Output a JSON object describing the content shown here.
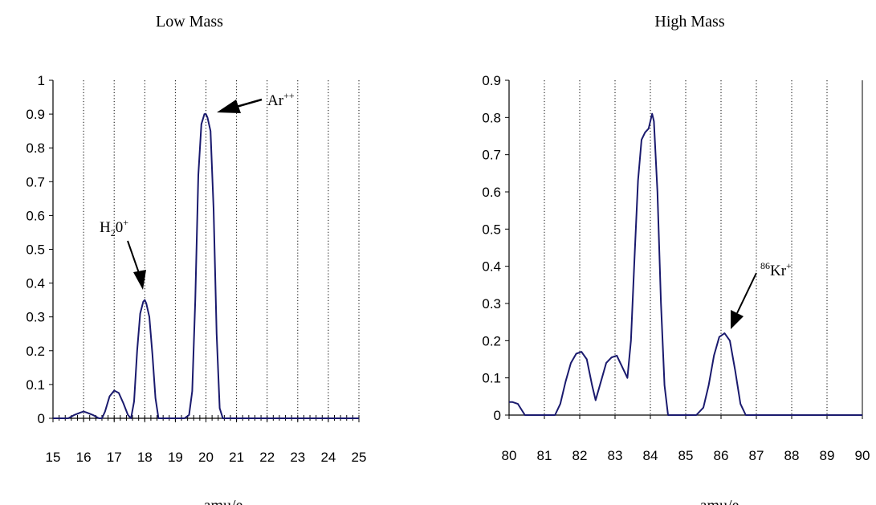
{
  "chart_data": [
    {
      "type": "line",
      "title": "Low Mass",
      "xlabel": "amu/e",
      "ylabel": "",
      "xlim": [
        15,
        25
      ],
      "ylim": [
        0,
        1
      ],
      "x_ticks": [
        "15",
        "16",
        "17",
        "18",
        "19",
        "20",
        "21",
        "22",
        "23",
        "24",
        "25"
      ],
      "y_ticks": [
        "0",
        "0.1",
        "0.2",
        "0.3",
        "0.4",
        "0.5",
        "0.6",
        "0.7",
        "0.8",
        "0.9",
        "1"
      ],
      "grid": "vertical-dotted",
      "line_color": "#1a1a6e",
      "series": [
        {
          "x": [
            15,
            15.5,
            15.7,
            15.9,
            16.0,
            16.1,
            16.3,
            16.5,
            16.6,
            16.7,
            16.85,
            17.0,
            17.15,
            17.3,
            17.45,
            17.55,
            17.65,
            17.75,
            17.85,
            17.95,
            18.0,
            18.05,
            18.15,
            18.25,
            18.35,
            18.45,
            18.6,
            19.0,
            19.3,
            19.45,
            19.55,
            19.65,
            19.75,
            19.85,
            19.95,
            20.0,
            20.05,
            20.15,
            20.25,
            20.35,
            20.45,
            20.55,
            21.0,
            25.0
          ],
          "y": [
            0,
            0,
            0.01,
            0.017,
            0.02,
            0.017,
            0.01,
            0,
            0,
            0.02,
            0.065,
            0.082,
            0.075,
            0.045,
            0.01,
            0,
            0.05,
            0.2,
            0.31,
            0.345,
            0.35,
            0.34,
            0.3,
            0.19,
            0.06,
            0,
            0,
            0,
            0,
            0.01,
            0.08,
            0.35,
            0.72,
            0.87,
            0.9,
            0.9,
            0.89,
            0.85,
            0.62,
            0.25,
            0.03,
            0,
            0,
            0
          ]
        }
      ],
      "annotations": [
        {
          "text": "Ar",
          "superscript": "++",
          "x": 20,
          "y": 0.9
        },
        {
          "text": "H",
          "subscript": "2",
          "text2": "0",
          "superscript": "+",
          "x": 18,
          "y": 0.35
        }
      ]
    },
    {
      "type": "line",
      "title": "High Mass",
      "xlabel": "amu/e",
      "ylabel": "",
      "xlim": [
        80,
        90
      ],
      "ylim": [
        0,
        0.9
      ],
      "x_ticks": [
        "80",
        "81",
        "82",
        "83",
        "84",
        "85",
        "86",
        "87",
        "88",
        "89",
        "90"
      ],
      "y_ticks": [
        "0",
        "0.1",
        "0.2",
        "0.3",
        "0.4",
        "0.5",
        "0.6",
        "0.7",
        "0.8",
        "0.9"
      ],
      "grid": "vertical-dotted",
      "line_color": "#1a1a6e",
      "series": [
        {
          "x": [
            80.0,
            80.1,
            80.25,
            80.35,
            80.45,
            80.6,
            81.0,
            81.3,
            81.45,
            81.6,
            81.75,
            81.9,
            82.05,
            82.2,
            82.35,
            82.45,
            82.6,
            82.75,
            82.9,
            83.05,
            83.2,
            83.35,
            83.45,
            83.55,
            83.65,
            83.75,
            83.85,
            83.95,
            84.05,
            84.1,
            84.2,
            84.3,
            84.4,
            84.5,
            84.6,
            85.0,
            85.3,
            85.5,
            85.65,
            85.8,
            85.95,
            86.1,
            86.25,
            86.4,
            86.55,
            86.7,
            87.0,
            90.0
          ],
          "y": [
            0.035,
            0.035,
            0.03,
            0.015,
            0,
            0,
            0,
            0,
            0.03,
            0.09,
            0.14,
            0.165,
            0.17,
            0.15,
            0.08,
            0.04,
            0.09,
            0.14,
            0.155,
            0.16,
            0.13,
            0.1,
            0.2,
            0.42,
            0.63,
            0.74,
            0.76,
            0.77,
            0.81,
            0.79,
            0.6,
            0.3,
            0.08,
            0,
            0,
            0,
            0,
            0.02,
            0.08,
            0.16,
            0.21,
            0.22,
            0.2,
            0.12,
            0.03,
            0,
            0,
            0
          ]
        }
      ],
      "annotations": [
        {
          "superscript": "86",
          "text": "Kr",
          "superscript2": "+",
          "x": 86.1,
          "y": 0.22
        }
      ]
    }
  ]
}
